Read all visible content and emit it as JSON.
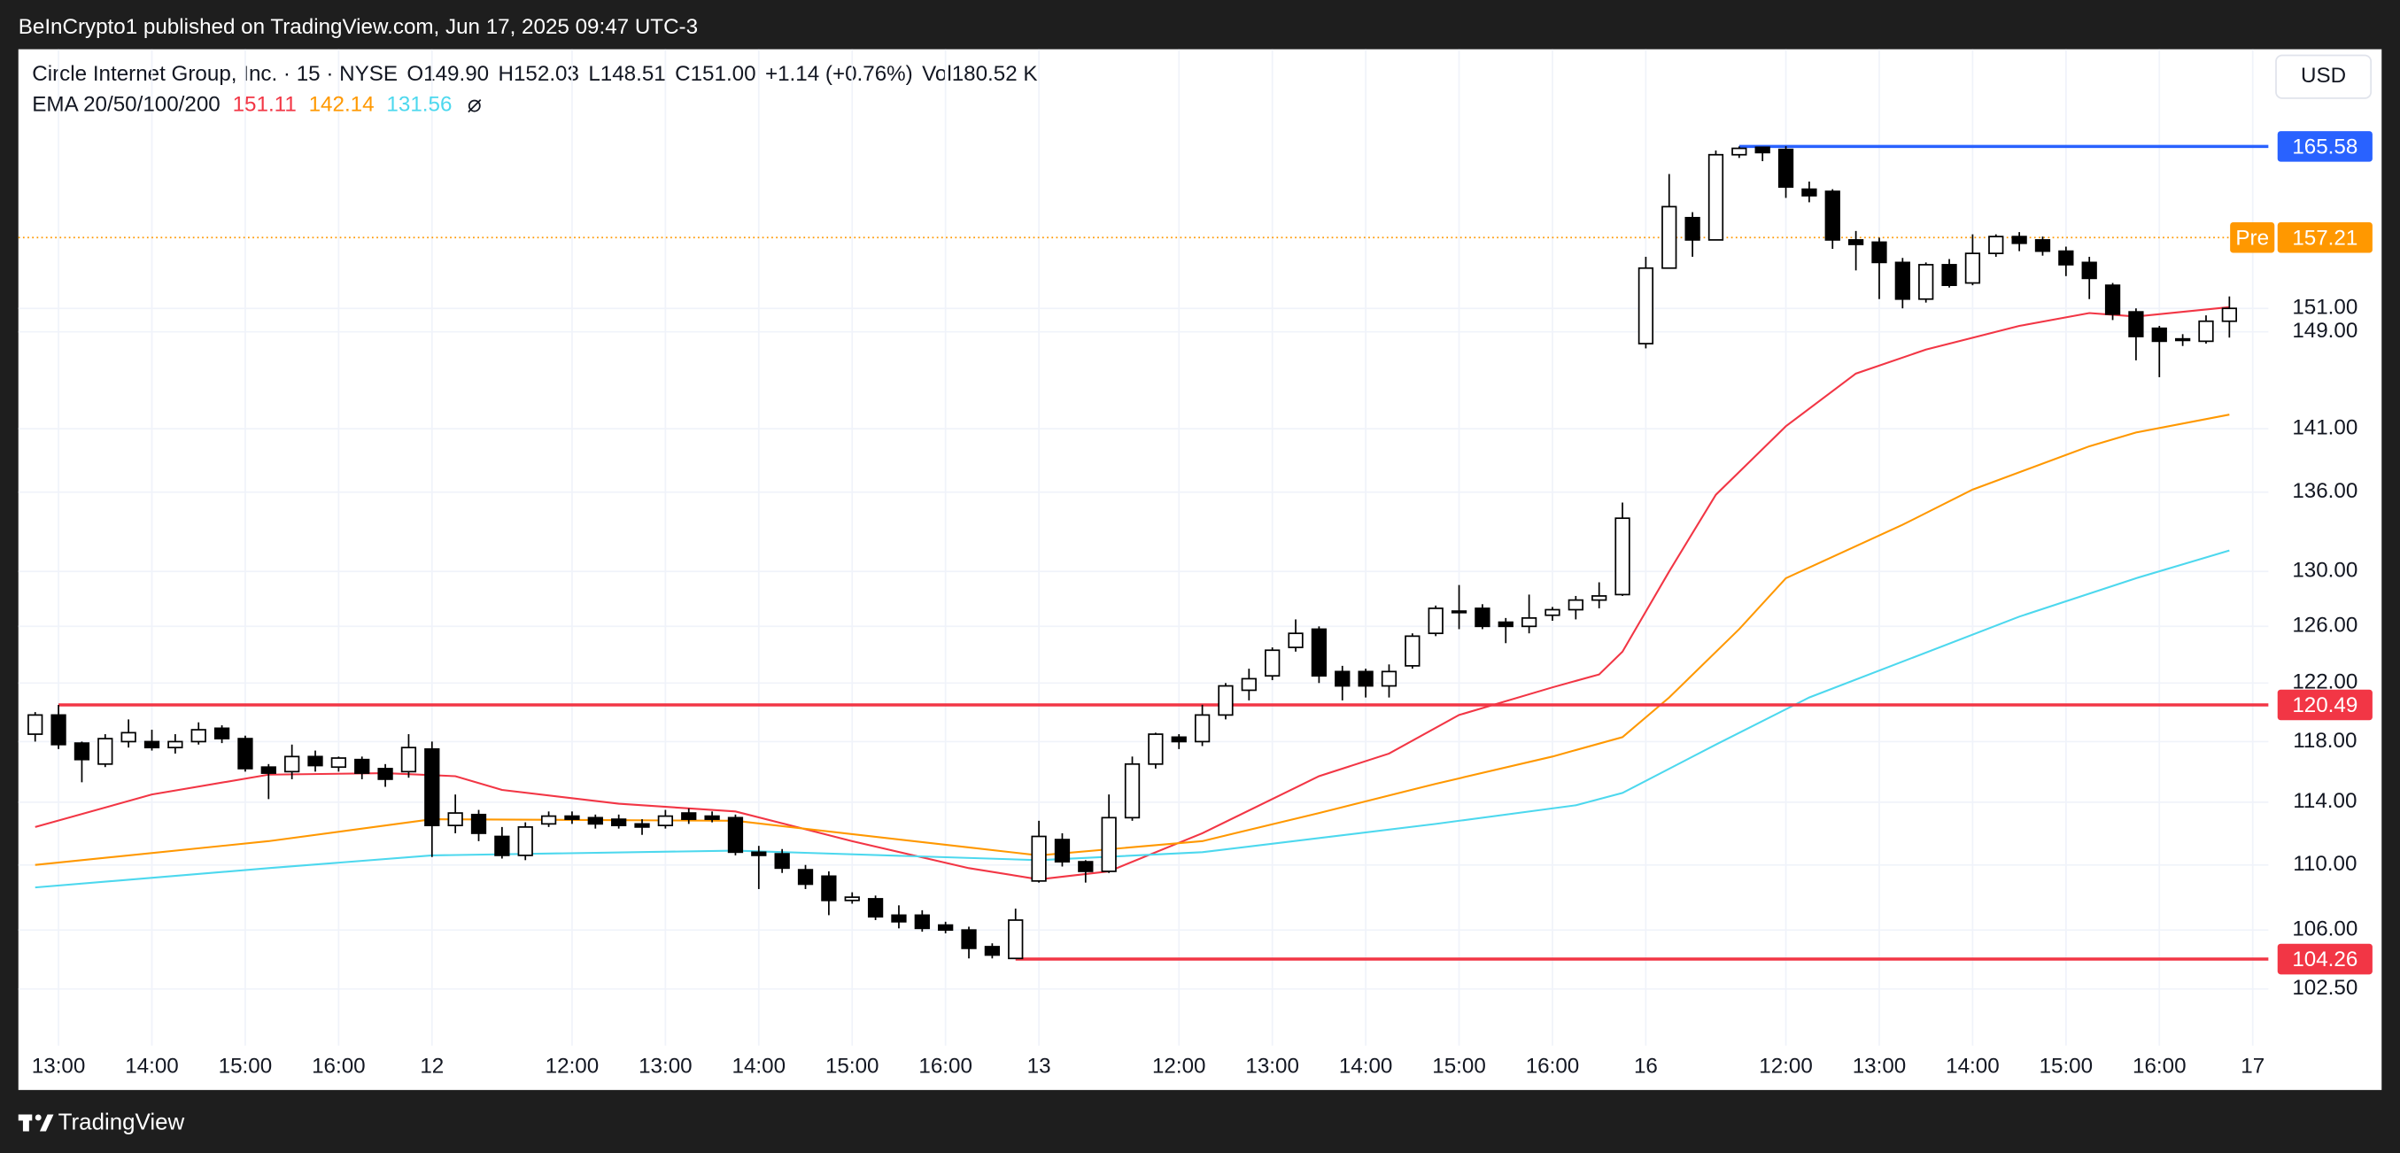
{
  "header": {
    "published": "BeInCrypto1 published on TradingView.com, Jun 17, 2025 09:47 UTC-3",
    "symbol": "Circle Internet Group, Inc. · 15 · NYSE",
    "ohlc": [
      "O149.90",
      "H152.03",
      "L148.51",
      "C151.00",
      "+1.14 (+0.76%)",
      "Vol180.52 K"
    ],
    "currency": "USD"
  },
  "footer": {
    "brand": "TradingView"
  },
  "chart_data": {
    "type": "candlestick",
    "log_scale": true,
    "grid": true,
    "up_color": "#ffffff",
    "down_color": "#000000",
    "wick_color": "#000000",
    "x": [
      0,
      1,
      2,
      3,
      4,
      5,
      6,
      7,
      8,
      9,
      10,
      11,
      12,
      13,
      14,
      15,
      16,
      17,
      18,
      19,
      20,
      21,
      22,
      23,
      24,
      25,
      26,
      27,
      28,
      29,
      30,
      31,
      32,
      33,
      34,
      35,
      36,
      37,
      38,
      39,
      40,
      41,
      42,
      43,
      44,
      45,
      46,
      47,
      48,
      49,
      50,
      51,
      52,
      53,
      54,
      55,
      56,
      57,
      58,
      59,
      60,
      61,
      62,
      63,
      64,
      65,
      66,
      67,
      68,
      69,
      70,
      71,
      72,
      73,
      74,
      75,
      76,
      77,
      78,
      79,
      80,
      81,
      82,
      83,
      84,
      85,
      86,
      87,
      88,
      89,
      90,
      91,
      92,
      93,
      94
    ],
    "open": [
      118.5,
      119.8,
      117.9,
      116.5,
      118,
      118,
      117.6,
      118,
      118.9,
      118.2,
      116.3,
      116,
      117,
      116.3,
      116.8,
      116.2,
      116,
      117.5,
      112.5,
      113.2,
      111.8,
      110.6,
      112.6,
      113.1,
      113,
      112.9,
      112.6,
      112.5,
      113.3,
      113.1,
      113,
      110.8,
      110.7,
      109.7,
      109.3,
      107.8,
      107.9,
      106.9,
      106.9,
      106.3,
      106,
      105,
      104.3,
      109,
      111.6,
      110.2,
      109.6,
      113,
      116.5,
      118.3,
      118,
      119.8,
      121.5,
      122.5,
      124.5,
      125.8,
      122.8,
      122.8,
      121.8,
      123.2,
      125.5,
      127.1,
      127.3,
      126.3,
      126,
      126.8,
      127.2,
      127.9,
      128.3,
      148,
      154.5,
      159,
      157,
      164.8,
      165.5,
      165.3,
      161.6,
      161.4,
      157,
      156.8,
      155,
      151.8,
      154.8,
      153.2,
      155.8,
      157.3,
      157,
      156,
      155,
      153,
      150.7,
      149.3,
      148.4,
      148.2,
      149.9
    ],
    "high": [
      120,
      120.49,
      118,
      118.5,
      119.5,
      118.8,
      118.5,
      119.3,
      119.1,
      118.4,
      116.5,
      117.8,
      117.4,
      117,
      117,
      116.5,
      118.5,
      118,
      114.5,
      113.5,
      112.4,
      112.7,
      113.4,
      113.4,
      113.2,
      113.2,
      112.9,
      113.5,
      113.6,
      113.4,
      113.2,
      111.2,
      111,
      110,
      109.6,
      108.3,
      108.1,
      107.5,
      107.2,
      106.5,
      106.2,
      105.2,
      107.3,
      112.8,
      112,
      110.3,
      114.5,
      117,
      118.6,
      118.5,
      120.5,
      122,
      123,
      124.5,
      126.5,
      126,
      123.2,
      123,
      123.3,
      125.5,
      127.5,
      129,
      127.6,
      126.6,
      128.3,
      127.4,
      128.2,
      129.2,
      135.2,
      155.5,
      163,
      159.5,
      165.2,
      165.58,
      165.5,
      165.6,
      162.3,
      161.6,
      157.8,
      157.2,
      155.4,
      155,
      155.3,
      157.5,
      157.5,
      157.7,
      157.3,
      156.4,
      155.5,
      153.2,
      151,
      149.5,
      148.8,
      150.4,
      152.03
    ],
    "low": [
      118,
      117.5,
      115.3,
      116.3,
      117.6,
      117.4,
      117.2,
      117.8,
      117.9,
      116,
      114.2,
      115.5,
      116,
      116,
      115.5,
      115,
      115.6,
      110.5,
      112,
      111.5,
      110.4,
      110.3,
      112.4,
      112.6,
      112.3,
      112.3,
      111.9,
      112.3,
      112.6,
      112.7,
      110.6,
      108.5,
      109.5,
      108.5,
      106.9,
      107.6,
      106.6,
      106.1,
      105.9,
      105.8,
      104.3,
      104.3,
      104.26,
      108.9,
      109.9,
      108.9,
      109.5,
      112.8,
      116.2,
      117.5,
      117.7,
      119.5,
      120.8,
      122.2,
      124.2,
      122,
      120.8,
      121,
      121,
      123,
      125.3,
      125.8,
      125.8,
      124.8,
      125.5,
      126.4,
      126.5,
      127.3,
      128.2,
      147.6,
      154.5,
      155.5,
      157,
      164.5,
      164.2,
      160.8,
      160.4,
      156.2,
      154.3,
      151.8,
      151,
      151.5,
      152.8,
      153,
      155.5,
      156,
      155.6,
      153.8,
      151.8,
      150,
      146.6,
      145.2,
      147.8,
      148,
      148.51
    ],
    "close": [
      119.8,
      117.8,
      116.8,
      118.2,
      118.6,
      117.6,
      118,
      118.8,
      118.2,
      116.2,
      115.9,
      117,
      116.4,
      116.9,
      115.9,
      115.5,
      117.6,
      112.5,
      113.3,
      112,
      110.6,
      112.4,
      113.1,
      112.9,
      112.6,
      112.5,
      112.4,
      113.1,
      112.9,
      112.9,
      110.8,
      110.6,
      109.8,
      108.8,
      107.8,
      108,
      106.8,
      106.5,
      106.1,
      106,
      104.9,
      104.5,
      106.6,
      111.8,
      110.2,
      109.6,
      113,
      116.5,
      118.5,
      118,
      119.8,
      121.8,
      122.3,
      124.3,
      125.5,
      122.5,
      121.8,
      121.8,
      122.8,
      125.3,
      127.3,
      127,
      126,
      126,
      126.6,
      127.2,
      127.9,
      128.2,
      134,
      154.5,
      160,
      157,
      164.8,
      165.4,
      165,
      161.8,
      161,
      157,
      156.6,
      155,
      151.8,
      154.8,
      153,
      155.8,
      157.3,
      156.7,
      156,
      154.8,
      153.6,
      150.5,
      148.6,
      148.2,
      148.3,
      149.9,
      151
    ],
    "xlim": [
      -0.72,
      95.67
    ],
    "xticks": [
      {
        "value": 1,
        "label": "13:00"
      },
      {
        "value": 5,
        "label": "14:00"
      },
      {
        "value": 9,
        "label": "15:00"
      },
      {
        "value": 13,
        "label": "16:00"
      },
      {
        "value": 17,
        "label": "12"
      },
      {
        "value": 23,
        "label": "12:00"
      },
      {
        "value": 27,
        "label": "13:00"
      },
      {
        "value": 31,
        "label": "14:00"
      },
      {
        "value": 35,
        "label": "15:00"
      },
      {
        "value": 39,
        "label": "16:00"
      },
      {
        "value": 43,
        "label": "13"
      },
      {
        "value": 49,
        "label": "12:00"
      },
      {
        "value": 53,
        "label": "13:00"
      },
      {
        "value": 57,
        "label": "14:00"
      },
      {
        "value": 61,
        "label": "15:00"
      },
      {
        "value": 65,
        "label": "16:00"
      },
      {
        "value": 69,
        "label": "16"
      },
      {
        "value": 75,
        "label": "12:00"
      },
      {
        "value": 79,
        "label": "13:00"
      },
      {
        "value": 83,
        "label": "14:00"
      },
      {
        "value": 87,
        "label": "15:00"
      },
      {
        "value": 91,
        "label": "16:00"
      },
      {
        "value": 95,
        "label": "17"
      }
    ],
    "ylim": [
      99.25,
      175
    ],
    "yticks": [
      {
        "value": 151,
        "label": "151.00"
      },
      {
        "value": 149,
        "label": "149.00"
      },
      {
        "value": 141,
        "label": "141.00"
      },
      {
        "value": 136,
        "label": "136.00"
      },
      {
        "value": 130,
        "label": "130.00"
      },
      {
        "value": 126,
        "label": "126.00"
      },
      {
        "value": 122,
        "label": "122.00"
      },
      {
        "value": 118,
        "label": "118.00"
      },
      {
        "value": 114,
        "label": "114.00"
      },
      {
        "value": 110,
        "label": "110.00"
      },
      {
        "value": 106,
        "label": "106.00"
      },
      {
        "value": 102.5,
        "label": "102.50"
      }
    ],
    "ema": {
      "label": "EMA 20/50/100/200",
      "series": [
        {
          "color": "#f23645",
          "x": [
            0,
            5,
            10,
            15,
            18,
            20,
            25,
            30,
            35,
            40,
            43,
            46,
            50,
            55,
            58,
            61,
            65,
            67,
            68,
            70,
            72,
            75,
            78,
            81,
            85,
            88,
            90,
            94
          ],
          "values": [
            112.4,
            114.5,
            115.8,
            115.9,
            115.7,
            114.8,
            113.9,
            113.4,
            111.5,
            109.8,
            109.1,
            109.6,
            112,
            115.7,
            117.2,
            119.8,
            121.7,
            122.6,
            124.2,
            130,
            135.8,
            141.2,
            145.5,
            147.5,
            149.5,
            150.6,
            150.3,
            151.11
          ]
        },
        {
          "color": "#ff9800",
          "x": [
            0,
            10,
            17,
            30,
            40,
            43,
            50,
            55,
            60,
            65,
            68,
            70,
            73,
            75,
            80,
            83,
            88,
            90,
            94
          ],
          "values": [
            110,
            111.5,
            112.9,
            112.8,
            111.1,
            110.6,
            111.5,
            113.3,
            115.2,
            117,
            118.3,
            121,
            125.8,
            129.5,
            133.5,
            136.2,
            139.6,
            140.7,
            142.14
          ]
        },
        {
          "color": "#4dd8ee",
          "x": [
            0,
            10,
            17,
            30,
            43,
            50,
            60,
            66,
            68,
            72,
            76,
            80,
            85,
            90,
            94
          ],
          "values": [
            108.6,
            109.8,
            110.6,
            110.9,
            110.3,
            110.8,
            112.6,
            113.8,
            114.6,
            117.8,
            121,
            123.5,
            126.7,
            129.5,
            131.56
          ]
        }
      ]
    },
    "levels": [
      {
        "value": 165.58,
        "color": "#2962ff",
        "start": 73,
        "style": "solid"
      },
      {
        "value": 157.21,
        "color": "#ff9800",
        "style": "dotted",
        "label": "Pre"
      },
      {
        "value": 120.49,
        "color": "#f23645",
        "start": 1,
        "style": "solid"
      },
      {
        "value": 104.26,
        "color": "#f23645",
        "start": 42,
        "style": "solid"
      }
    ]
  }
}
